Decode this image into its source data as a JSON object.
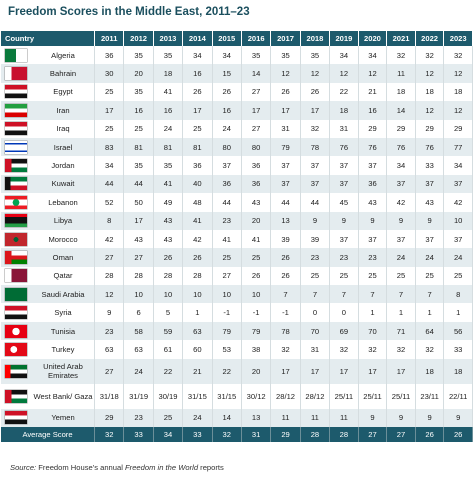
{
  "title": "Freedom Scores in the Middle East, 2011–23",
  "table": {
    "header": [
      "Country",
      "2011",
      "2012",
      "2013",
      "2014",
      "2015",
      "2016",
      "2017",
      "2018",
      "2019",
      "2020",
      "2021",
      "2022",
      "2023"
    ],
    "rows": [
      [
        "Algeria",
        36,
        35,
        35,
        34,
        34,
        35,
        35,
        35,
        34,
        34,
        32,
        32,
        32
      ],
      [
        "Bahrain",
        30,
        20,
        18,
        16,
        15,
        14,
        12,
        12,
        12,
        12,
        11,
        12,
        12
      ],
      [
        "Egypt",
        25,
        35,
        41,
        26,
        26,
        27,
        26,
        26,
        22,
        21,
        18,
        18,
        18
      ],
      [
        "Iran",
        17,
        16,
        16,
        17,
        16,
        17,
        17,
        17,
        18,
        16,
        14,
        12,
        12
      ],
      [
        "Iraq",
        25,
        25,
        24,
        25,
        24,
        27,
        31,
        32,
        31,
        29,
        29,
        29,
        29
      ],
      [
        "Israel",
        83,
        81,
        81,
        81,
        80,
        80,
        79,
        78,
        76,
        76,
        76,
        76,
        77
      ],
      [
        "Jordan",
        34,
        35,
        35,
        36,
        37,
        36,
        37,
        37,
        37,
        37,
        34,
        33,
        34
      ],
      [
        "Kuwait",
        44,
        44,
        41,
        40,
        36,
        36,
        37,
        37,
        37,
        36,
        37,
        37,
        37
      ],
      [
        "Lebanon",
        52,
        50,
        49,
        48,
        44,
        43,
        44,
        44,
        45,
        43,
        42,
        43,
        42
      ],
      [
        "Libya",
        8,
        17,
        43,
        41,
        23,
        20,
        13,
        9,
        9,
        9,
        9,
        9,
        10
      ],
      [
        "Morocco",
        42,
        43,
        43,
        42,
        41,
        41,
        39,
        39,
        37,
        37,
        37,
        37,
        37
      ],
      [
        "Oman",
        27,
        27,
        26,
        26,
        25,
        25,
        26,
        23,
        23,
        23,
        24,
        24,
        24
      ],
      [
        "Qatar",
        28,
        28,
        28,
        28,
        27,
        26,
        26,
        25,
        25,
        25,
        25,
        25,
        25
      ],
      [
        "Saudi Arabia",
        12,
        10,
        10,
        10,
        10,
        10,
        7,
        7,
        7,
        7,
        7,
        7,
        8
      ],
      [
        "Syria",
        9,
        6,
        5,
        1,
        -1,
        -1,
        -1,
        0,
        0,
        1,
        1,
        1,
        1
      ],
      [
        "Tunisia",
        23,
        58,
        59,
        63,
        79,
        79,
        78,
        70,
        69,
        70,
        71,
        64,
        56
      ],
      [
        "Turkey",
        63,
        63,
        61,
        60,
        53,
        38,
        32,
        31,
        32,
        32,
        32,
        32,
        33
      ],
      [
        "United Arab Emirates",
        27,
        24,
        22,
        21,
        22,
        20,
        17,
        17,
        17,
        17,
        17,
        18,
        18
      ],
      [
        "West Bank/ Gaza",
        "31/18",
        "31/19",
        "30/19",
        "31/15",
        "31/15",
        "30/12",
        "28/12",
        "28/12",
        "25/11",
        "25/11",
        "25/11",
        "23/11",
        "22/11"
      ],
      [
        "Yemen",
        29,
        23,
        25,
        24,
        14,
        13,
        11,
        11,
        11,
        9,
        9,
        9,
        9
      ]
    ],
    "average": [
      "Average Score",
      32,
      33,
      34,
      33,
      32,
      31,
      29,
      28,
      28,
      27,
      27,
      26,
      26
    ]
  },
  "source": {
    "label": "Source:",
    "text": "Freedom House's annual",
    "italic": "Freedom in the World",
    "tail": "reports"
  }
}
